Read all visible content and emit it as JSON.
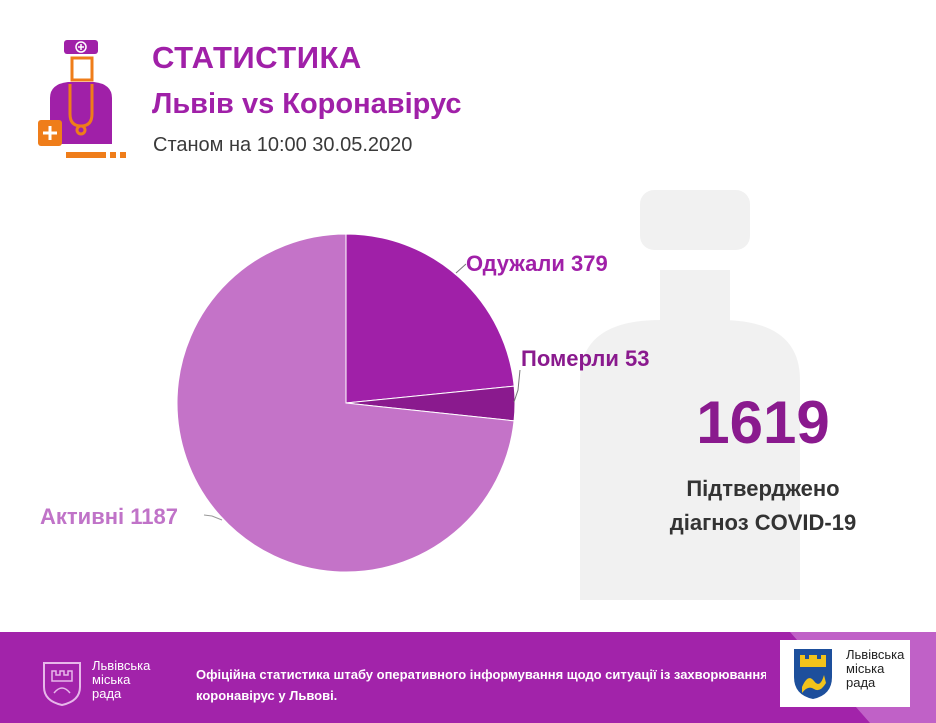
{
  "header": {
    "title": "СТАТИСТИКА",
    "subtitle": "Львів vs Коронавірус",
    "as_of": "Станом на 10:00 30.05.2020"
  },
  "icons": {
    "logo": "doctor-with-medical-kit-icon",
    "watermark": "doctor-silhouette-icon",
    "coat_of_arms": "lviv-coat-of-arms-icon"
  },
  "colors": {
    "brand": "#a020a8",
    "recovered": "#a020a8",
    "died": "#8a1a8e",
    "active": "#c473c8",
    "logo_accent": "#ef7d1a"
  },
  "chart_data": {
    "type": "pie",
    "slices": [
      {
        "label": "Одужали",
        "value": 379,
        "color": "#a020a8"
      },
      {
        "label": "Померли",
        "value": 53,
        "color": "#8a1a8e"
      },
      {
        "label": "Активні",
        "value": 1187,
        "color": "#c473c8"
      }
    ],
    "labels": {
      "recovered": "Одужали 379",
      "died": "Померли 53",
      "active": "Активні 1187"
    }
  },
  "summary": {
    "total": "1619",
    "label_line1": "Підтверджено",
    "label_line2": "діагноз COVID-19"
  },
  "footer": {
    "org_line1": "Львівська",
    "org_line2": "міська",
    "org_line3": "рада",
    "text_line1": "Офіційна статистика штабу оперативного інформування щодо ситуації із захворюванням на",
    "text_line2": "коронавірус у Львові."
  }
}
